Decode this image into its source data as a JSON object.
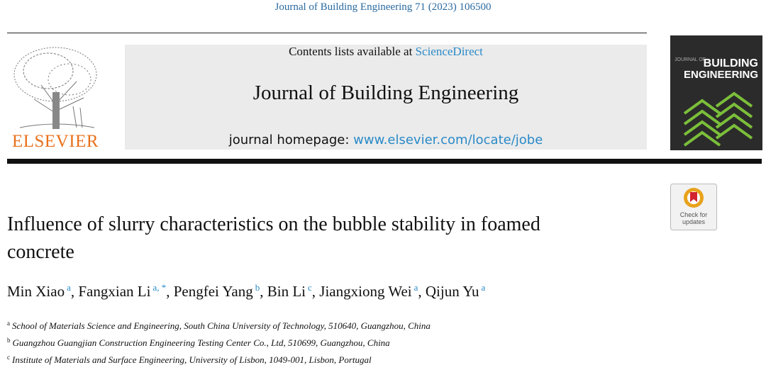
{
  "header": {
    "citation": "Journal of Building Engineering 71 (2023) 106500",
    "publisher": "ELSEVIER",
    "banner": {
      "contents_prefix": "Contents lists available at ",
      "contents_link": "ScienceDirect",
      "journal_name": "Journal of Building Engineering",
      "homepage_prefix": "journal homepage: ",
      "homepage_link": "www.elsevier.com/locate/jobe"
    },
    "cover": {
      "small": "JOURNAL OF",
      "line1": "BUILDING",
      "line2": "ENGINEERING"
    },
    "check_updates": {
      "line1": "Check for",
      "line2": "updates"
    }
  },
  "article": {
    "title": "Influence of slurry characteristics on the bubble stability in foamed concrete",
    "authors": {
      "separator": ", ",
      "list": [
        {
          "name": "Min Xiao",
          "marks": "a"
        },
        {
          "name": "Fangxian Li",
          "marks": "a, *"
        },
        {
          "name": "Pengfei Yang",
          "marks": "b"
        },
        {
          "name": "Bin Li",
          "marks": "c"
        },
        {
          "name": "Jiangxiong Wei",
          "marks": "a"
        },
        {
          "name": "Qijun Yu",
          "marks": "a"
        }
      ]
    },
    "affiliations": [
      {
        "label": "a",
        "text": "School of Materials Science and Engineering, South China University of Technology, 510640, Guangzhou, China"
      },
      {
        "label": "b",
        "text": "Guangzhou Guangjian Construction Engineering Testing Center Co., Ltd, 510699, Guangzhou, China"
      },
      {
        "label": "c",
        "text": "Institute of Materials and Surface Engineering, University of Lisbon, 1049-001, Lisbon, Portugal"
      }
    ]
  }
}
